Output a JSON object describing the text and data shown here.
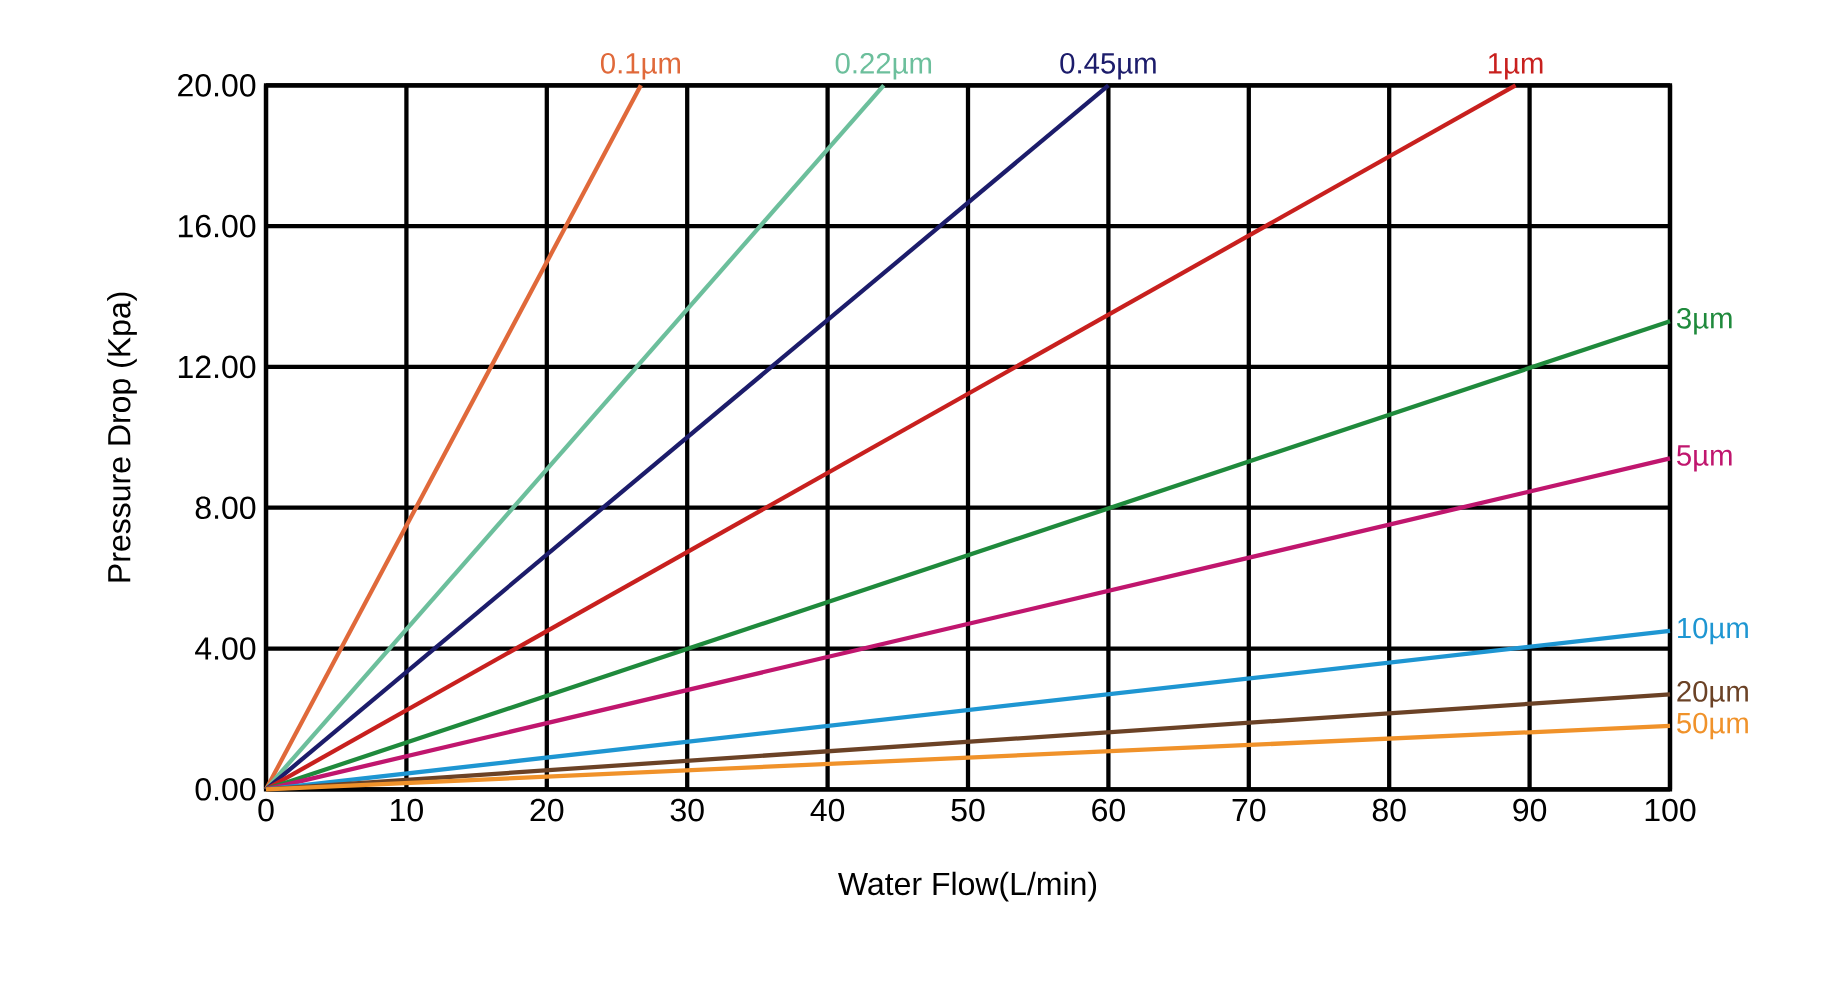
{
  "chart_data": {
    "type": "line",
    "xlabel": "Water Flow(L/min)",
    "ylabel": "Pressure Drop (Kpa)",
    "xlim": [
      0,
      100
    ],
    "ylim": [
      0,
      20
    ],
    "xticks": [
      0,
      10,
      20,
      30,
      40,
      50,
      60,
      70,
      80,
      90,
      100
    ],
    "yticks": [
      {
        "value": 0,
        "label": "0.00"
      },
      {
        "value": 4,
        "label": "4.00"
      },
      {
        "value": 8,
        "label": "8.00"
      },
      {
        "value": 12,
        "label": "12.00"
      },
      {
        "value": 16,
        "label": "16.00"
      },
      {
        "value": 20,
        "label": "20.00"
      }
    ],
    "grid": true,
    "marker": "none",
    "line_style": "solid",
    "series": [
      {
        "name": "0.1µm",
        "color": "#e0693a",
        "x": [
          0,
          26.7
        ],
        "values": [
          0,
          20
        ]
      },
      {
        "name": "0.22µm",
        "color": "#6cbf9c",
        "x": [
          0,
          44
        ],
        "values": [
          0,
          20
        ]
      },
      {
        "name": "0.45µm",
        "color": "#1c1c6b",
        "x": [
          0,
          60
        ],
        "values": [
          0,
          20
        ]
      },
      {
        "name": "1µm",
        "color": "#c8201e",
        "x": [
          0,
          89
        ],
        "values": [
          0,
          20
        ]
      },
      {
        "name": "3µm",
        "color": "#1f8a3c",
        "x": [
          0,
          100
        ],
        "values": [
          0,
          13.3
        ]
      },
      {
        "name": "5µm",
        "color": "#c0166e",
        "x": [
          0,
          100
        ],
        "values": [
          0,
          9.4
        ]
      },
      {
        "name": "10µm",
        "color": "#1e96d2",
        "x": [
          0,
          100
        ],
        "values": [
          0,
          4.5
        ]
      },
      {
        "name": "20µm",
        "color": "#6b4226",
        "x": [
          0,
          100
        ],
        "values": [
          0,
          2.7
        ]
      },
      {
        "name": "50µm",
        "color": "#f0922a",
        "x": [
          0,
          100
        ],
        "values": [
          0,
          1.8
        ]
      }
    ]
  }
}
